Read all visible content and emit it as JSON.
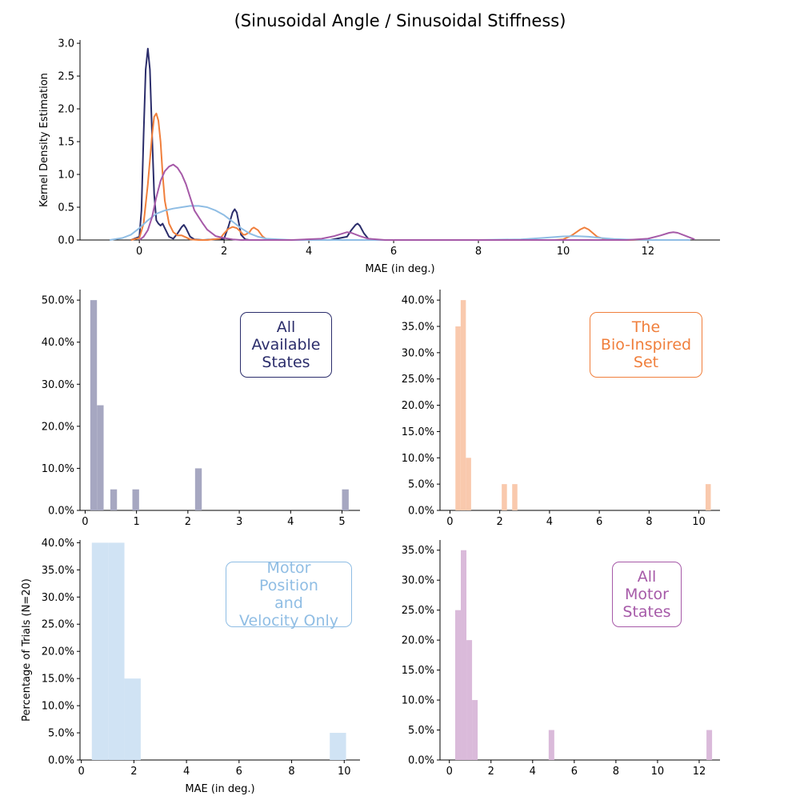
{
  "figure_title": "(Sinusoidal Angle / Sinusoidal Stiffness)",
  "colors": {
    "all_states": "#2b2d6b",
    "bio_inspired": "#f07f3c",
    "motor_pos_vel": "#8fbde4",
    "all_motor": "#a65aa8",
    "axis": "#000000"
  },
  "chart_data": [
    {
      "id": "kde",
      "type": "line",
      "title": "",
      "xlabel": "MAE (in deg.)",
      "ylabel": "Kernel Density Estimation",
      "xlim": [
        -1.4,
        13.7
      ],
      "ylim": [
        0,
        3.05
      ],
      "xticks": [
        "0",
        "2",
        "4",
        "6",
        "8",
        "10",
        "12"
      ],
      "yticks": [
        "0.0",
        "0.5",
        "1.0",
        "1.5",
        "2.0",
        "2.5",
        "3.0"
      ],
      "grid": false,
      "series": [
        {
          "key": "all_states",
          "x": [
            -0.2,
            0.0,
            0.05,
            0.1,
            0.15,
            0.2,
            0.25,
            0.3,
            0.35,
            0.4,
            0.45,
            0.5,
            0.55,
            0.6,
            0.7,
            0.8,
            0.9,
            1.0,
            1.05,
            1.1,
            1.2,
            1.3,
            1.5,
            2.0,
            2.1,
            2.2,
            2.25,
            2.3,
            2.35,
            2.4,
            2.5,
            2.6,
            3.0,
            4.5,
            4.9,
            5.0,
            5.1,
            5.15,
            5.2,
            5.3,
            5.4,
            5.6,
            6.0,
            12.0,
            13.0
          ],
          "y": [
            0,
            0.05,
            0.45,
            1.6,
            2.6,
            2.92,
            2.6,
            1.6,
            0.7,
            0.3,
            0.25,
            0.22,
            0.25,
            0.18,
            0.05,
            0.02,
            0.1,
            0.2,
            0.23,
            0.18,
            0.05,
            0.01,
            0.0,
            0.02,
            0.2,
            0.42,
            0.47,
            0.42,
            0.25,
            0.08,
            0.01,
            0,
            0,
            0,
            0.05,
            0.15,
            0.23,
            0.25,
            0.22,
            0.1,
            0.02,
            0,
            0,
            0,
            0
          ]
        },
        {
          "key": "bio_inspired",
          "x": [
            -0.2,
            0.0,
            0.1,
            0.2,
            0.3,
            0.35,
            0.4,
            0.45,
            0.5,
            0.55,
            0.6,
            0.7,
            0.8,
            0.9,
            1.0,
            1.1,
            1.2,
            1.4,
            1.6,
            1.9,
            2.0,
            2.1,
            2.2,
            2.3,
            2.4,
            2.45,
            2.5,
            2.6,
            2.65,
            2.7,
            2.8,
            2.9,
            3.0,
            3.2,
            4.0,
            9.8,
            10.0,
            10.2,
            10.4,
            10.5,
            10.6,
            10.8,
            11.0,
            11.3,
            13.0
          ],
          "y": [
            0,
            0.03,
            0.25,
            0.85,
            1.6,
            1.88,
            1.93,
            1.82,
            1.5,
            1.0,
            0.6,
            0.25,
            0.12,
            0.07,
            0.07,
            0.04,
            0.01,
            0,
            0,
            0.02,
            0.1,
            0.17,
            0.2,
            0.18,
            0.12,
            0.08,
            0.08,
            0.12,
            0.17,
            0.19,
            0.15,
            0.06,
            0.01,
            0,
            0,
            0,
            0.01,
            0.07,
            0.16,
            0.19,
            0.16,
            0.05,
            0.01,
            0,
            0
          ]
        },
        {
          "key": "motor_pos_vel",
          "x": [
            -0.7,
            -0.4,
            -0.2,
            0.0,
            0.2,
            0.4,
            0.6,
            0.8,
            1.0,
            1.2,
            1.4,
            1.6,
            1.8,
            2.0,
            2.2,
            2.4,
            2.6,
            2.8,
            3.0,
            3.3,
            3.6,
            4.0,
            8.0,
            9.0,
            9.5,
            10.0,
            10.3,
            10.6,
            10.9,
            11.2,
            11.6,
            12.0,
            13.0
          ],
          "y": [
            0,
            0.03,
            0.08,
            0.18,
            0.3,
            0.4,
            0.45,
            0.48,
            0.5,
            0.52,
            0.52,
            0.5,
            0.45,
            0.38,
            0.28,
            0.18,
            0.1,
            0.05,
            0.02,
            0.01,
            0,
            0,
            0,
            0.01,
            0.03,
            0.055,
            0.06,
            0.05,
            0.03,
            0.015,
            0.005,
            0,
            0
          ]
        },
        {
          "key": "all_motor",
          "x": [
            0.0,
            0.1,
            0.2,
            0.3,
            0.4,
            0.5,
            0.6,
            0.7,
            0.8,
            0.9,
            1.0,
            1.1,
            1.2,
            1.3,
            1.4,
            1.5,
            1.6,
            1.8,
            2.0,
            2.2,
            2.4,
            2.6,
            3.0,
            3.6,
            4.3,
            4.6,
            4.8,
            4.9,
            5.0,
            5.2,
            5.4,
            5.8,
            6.0,
            11.5,
            12.0,
            12.3,
            12.5,
            12.6,
            12.7,
            12.9,
            13.1
          ],
          "y": [
            0,
            0.05,
            0.15,
            0.35,
            0.65,
            0.9,
            1.05,
            1.12,
            1.15,
            1.1,
            1.0,
            0.85,
            0.65,
            0.45,
            0.35,
            0.25,
            0.16,
            0.06,
            0.03,
            0.01,
            0,
            0,
            0,
            0,
            0.02,
            0.06,
            0.1,
            0.12,
            0.11,
            0.06,
            0.02,
            0,
            0,
            0,
            0.02,
            0.07,
            0.11,
            0.12,
            0.11,
            0.06,
            0.01
          ]
        }
      ]
    },
    {
      "id": "hist_all_states",
      "type": "bar",
      "title": "",
      "xlabel": "",
      "ylabel": "",
      "legend": "All\nAvailable\nStates",
      "color_key": "all_states",
      "xlim": [
        -0.1,
        5.35
      ],
      "ylim": [
        0,
        52.5
      ],
      "xticks": [
        "0",
        "1",
        "2",
        "3",
        "4",
        "5"
      ],
      "yticks": [
        "0.0%",
        "10.0%",
        "20.0%",
        "30.0%",
        "40.0%",
        "50.0%"
      ],
      "bins": [
        {
          "x0": 0.1,
          "x1": 0.23,
          "value": 50
        },
        {
          "x0": 0.23,
          "x1": 0.36,
          "value": 25
        },
        {
          "x0": 0.49,
          "x1": 0.62,
          "value": 5
        },
        {
          "x0": 0.92,
          "x1": 1.05,
          "value": 5
        },
        {
          "x0": 2.14,
          "x1": 2.27,
          "value": 10
        },
        {
          "x0": 5.0,
          "x1": 5.13,
          "value": 5
        }
      ]
    },
    {
      "id": "hist_bio_inspired",
      "type": "bar",
      "title": "",
      "xlabel": "",
      "ylabel": "",
      "legend": "The\nBio-Inspired\nSet",
      "color_key": "bio_inspired",
      "xlim": [
        -0.4,
        10.85
      ],
      "ylim": [
        0,
        42
      ],
      "xticks": [
        "0",
        "2",
        "4",
        "6",
        "8",
        "10"
      ],
      "yticks": [
        "0.0%",
        "5.0%",
        "10.0%",
        "15.0%",
        "20.0%",
        "25.0%",
        "30.0%",
        "35.0%",
        "40.0%"
      ],
      "bins": [
        {
          "x0": 0.22,
          "x1": 0.43,
          "value": 35
        },
        {
          "x0": 0.43,
          "x1": 0.64,
          "value": 40
        },
        {
          "x0": 0.64,
          "x1": 0.85,
          "value": 10
        },
        {
          "x0": 2.08,
          "x1": 2.29,
          "value": 5
        },
        {
          "x0": 2.5,
          "x1": 2.71,
          "value": 5
        },
        {
          "x0": 10.27,
          "x1": 10.48,
          "value": 5
        }
      ]
    },
    {
      "id": "hist_motor_pos_vel",
      "type": "bar",
      "title": "",
      "xlabel": "MAE (in deg.)",
      "ylabel": "Percentage of Trials (N=20)",
      "legend": "Motor Position\nand\nVelocity Only",
      "color_key": "motor_pos_vel",
      "xlim": [
        -0.05,
        10.6
      ],
      "ylim": [
        0,
        40.5
      ],
      "xticks": [
        "0",
        "2",
        "4",
        "6",
        "8",
        "10"
      ],
      "yticks": [
        "0.0%",
        "5.0%",
        "10.0%",
        "15.0%",
        "20.0%",
        "25.0%",
        "30.0%",
        "35.0%",
        "40.0%"
      ],
      "bins": [
        {
          "x0": 0.4,
          "x1": 1.02,
          "value": 40
        },
        {
          "x0": 1.02,
          "x1": 1.64,
          "value": 40
        },
        {
          "x0": 1.64,
          "x1": 2.26,
          "value": 15
        },
        {
          "x0": 9.45,
          "x1": 10.07,
          "value": 5
        }
      ]
    },
    {
      "id": "hist_all_motor",
      "type": "bar",
      "title": "",
      "xlabel": "",
      "ylabel": "",
      "legend": "All\nMotor\nStates",
      "color_key": "all_motor",
      "xlim": [
        -0.45,
        13.0
      ],
      "ylim": [
        0,
        36.7
      ],
      "xticks": [
        "0",
        "2",
        "4",
        "6",
        "8",
        "10",
        "12"
      ],
      "yticks": [
        "0.0%",
        "5.0%",
        "10.0%",
        "15.0%",
        "20.0%",
        "25.0%",
        "30.0%",
        "35.0%"
      ],
      "bins": [
        {
          "x0": 0.28,
          "x1": 0.55,
          "value": 25
        },
        {
          "x0": 0.55,
          "x1": 0.82,
          "value": 35
        },
        {
          "x0": 0.82,
          "x1": 1.09,
          "value": 20
        },
        {
          "x0": 1.09,
          "x1": 1.36,
          "value": 10
        },
        {
          "x0": 4.77,
          "x1": 5.04,
          "value": 5
        },
        {
          "x0": 12.35,
          "x1": 12.62,
          "value": 5
        }
      ]
    }
  ]
}
